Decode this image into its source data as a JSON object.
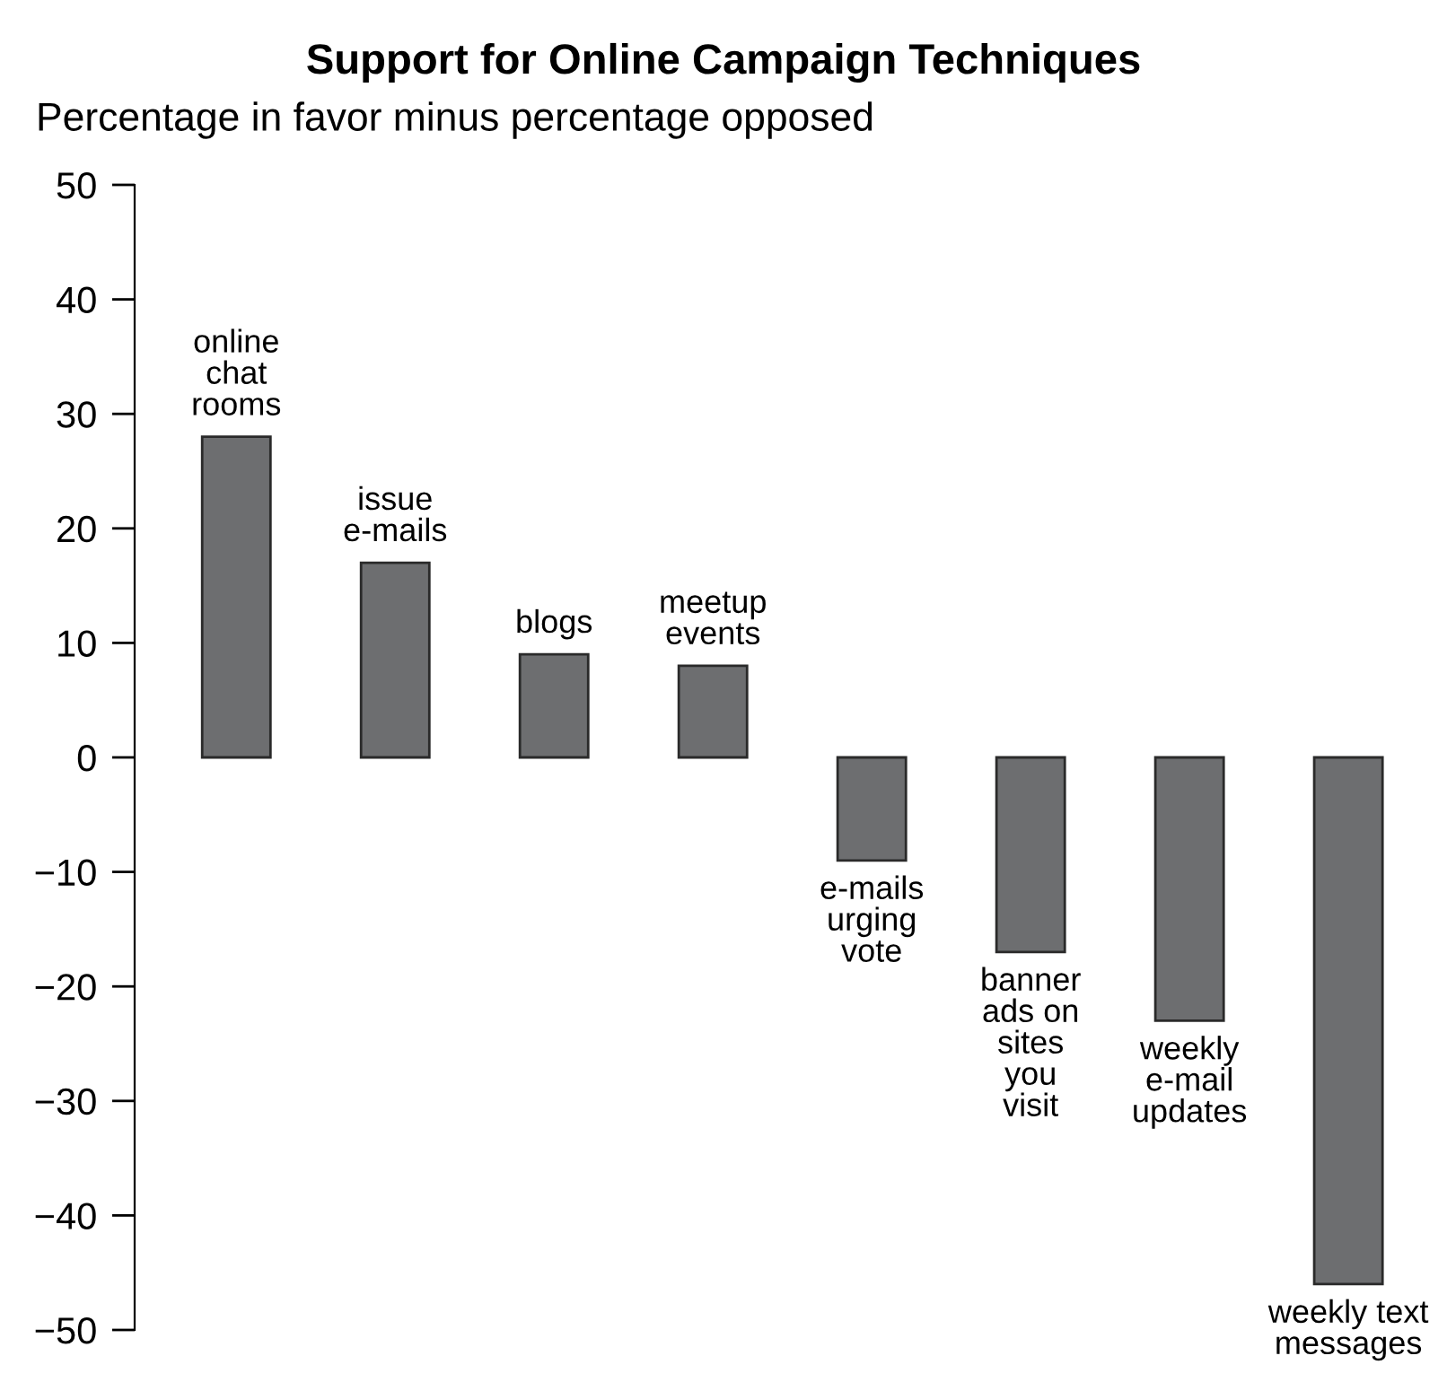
{
  "chart_data": {
    "type": "bar",
    "title": "Support for Online Campaign Techniques",
    "subtitle": "Percentage in favor minus percentage opposed",
    "categories": [
      "online\nchat\nrooms",
      "issue\ne-mails",
      "blogs",
      "meetup\nevents",
      "e-mails\nurging\nvote",
      "banner\nads on\nsites\nyou\nvisit",
      "weekly\ne-mail\nupdates",
      "weekly text\nmessages"
    ],
    "values": [
      28,
      17,
      9,
      8,
      -9,
      -17,
      -23,
      -46
    ],
    "color": "#6d6e70",
    "ylim": [
      -50,
      50
    ],
    "yticks": [
      -50,
      -40,
      -30,
      -20,
      -10,
      0,
      10,
      20,
      30,
      40,
      50
    ],
    "tick_labels": "y",
    "grid": false
  }
}
